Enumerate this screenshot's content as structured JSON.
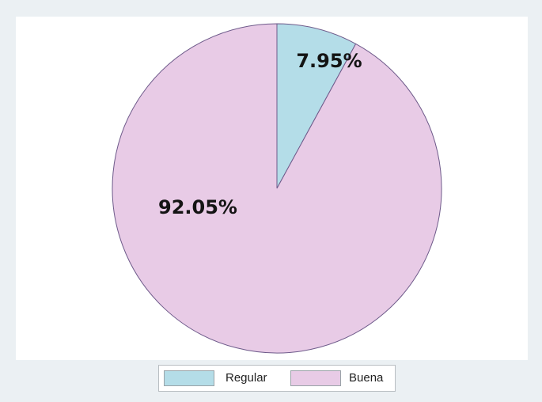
{
  "chart_data": {
    "type": "pie",
    "slices": [
      {
        "label": "Regular",
        "value": 7.95,
        "display": "7.95%",
        "color": "#b4dde8"
      },
      {
        "label": "Buena",
        "value": 92.05,
        "display": "92.05%",
        "color": "#e8cbe6"
      }
    ],
    "start_angle": "12 o'clock",
    "direction": "clockwise",
    "legend_position": "bottom",
    "title": "",
    "edge_color": "#6e5a8a"
  },
  "legend": {
    "items": [
      {
        "label": "Regular",
        "color": "#b4dde8"
      },
      {
        "label": "Buena",
        "color": "#e8cbe6"
      }
    ]
  }
}
